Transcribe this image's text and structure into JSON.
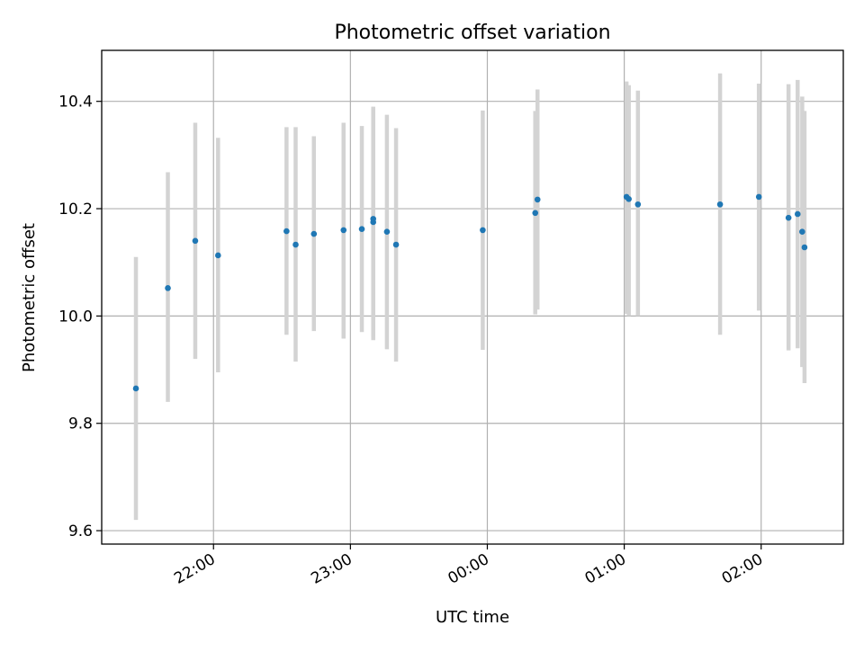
{
  "chart_data": {
    "type": "scatter",
    "title": "Photometric offset variation",
    "xlabel": "UTC time",
    "ylabel": "Photometric offset",
    "x_axis": {
      "kind": "time",
      "range": [
        "21:11",
        "02:36"
      ],
      "ticks": [
        "22:00",
        "23:00",
        "00:00",
        "01:00",
        "02:00"
      ],
      "tick_label_rotation_deg": 30
    },
    "y_axis": {
      "range": [
        9.575,
        10.495
      ],
      "ticks": [
        9.6,
        9.8,
        10.0,
        10.2,
        10.4
      ],
      "tick_labels": [
        "9.6",
        "9.8",
        "10.0",
        "10.2",
        "10.4"
      ]
    },
    "grid": true,
    "legend": "none",
    "series": [
      {
        "marker_color": "#1f77b4",
        "errorbar_color": "#d3d3d3",
        "points": [
          {
            "x": "21:26",
            "y": 9.865,
            "low": 9.62,
            "high": 10.11
          },
          {
            "x": "21:40",
            "y": 10.052,
            "low": 9.84,
            "high": 10.268
          },
          {
            "x": "21:52",
            "y": 10.14,
            "low": 9.92,
            "high": 10.36
          },
          {
            "x": "22:02",
            "y": 10.113,
            "low": 9.895,
            "high": 10.332
          },
          {
            "x": "22:32",
            "y": 10.158,
            "low": 9.965,
            "high": 10.352
          },
          {
            "x": "22:36",
            "y": 10.133,
            "low": 9.915,
            "high": 10.352
          },
          {
            "x": "22:44",
            "y": 10.153,
            "low": 9.972,
            "high": 10.335
          },
          {
            "x": "22:57",
            "y": 10.16,
            "low": 9.958,
            "high": 10.36
          },
          {
            "x": "23:05",
            "y": 10.162,
            "low": 9.97,
            "high": 10.354
          },
          {
            "x": "23:10",
            "y": 10.175,
            "low": 9.962,
            "high": 10.39
          },
          {
            "x": "23:10",
            "y": 10.181,
            "low": 9.955,
            "high": 10.387
          },
          {
            "x": "23:16",
            "y": 10.157,
            "low": 9.938,
            "high": 10.375
          },
          {
            "x": "23:20",
            "y": 10.133,
            "low": 9.915,
            "high": 10.35
          },
          {
            "x": "23:58",
            "y": 10.16,
            "low": 9.937,
            "high": 10.383
          },
          {
            "x": "00:21",
            "y": 10.192,
            "low": 10.003,
            "high": 10.382
          },
          {
            "x": "00:22",
            "y": 10.217,
            "low": 10.012,
            "high": 10.422
          },
          {
            "x": "01:01",
            "y": 10.222,
            "low": 10.004,
            "high": 10.437
          },
          {
            "x": "01:02",
            "y": 10.218,
            "low": 10.0,
            "high": 10.43
          },
          {
            "x": "01:06",
            "y": 10.208,
            "low": 10.0,
            "high": 10.42
          },
          {
            "x": "01:42",
            "y": 10.208,
            "low": 9.965,
            "high": 10.452
          },
          {
            "x": "01:59",
            "y": 10.222,
            "low": 10.01,
            "high": 10.433
          },
          {
            "x": "02:12",
            "y": 10.183,
            "low": 9.936,
            "high": 10.432
          },
          {
            "x": "02:16",
            "y": 10.19,
            "low": 9.94,
            "high": 10.44
          },
          {
            "x": "02:18",
            "y": 10.157,
            "low": 9.905,
            "high": 10.409
          },
          {
            "x": "02:19",
            "y": 10.128,
            "low": 9.875,
            "high": 10.382
          }
        ]
      }
    ]
  }
}
